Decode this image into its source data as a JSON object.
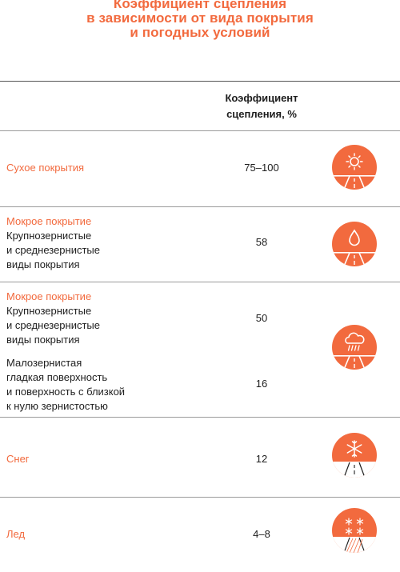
{
  "title": {
    "line1": "Коэффициент сцепления",
    "line2": "в зависимости от вида покрытия",
    "line3": "и погодных условий"
  },
  "header": {
    "line1": "Коэффициент",
    "line2": "сцепления, %"
  },
  "rows": [
    {
      "condition": "Сухое покрытия",
      "value": "75–100",
      "icon": "sun-road-icon"
    },
    {
      "condition": "Мокрое покрытие",
      "surface": [
        "Крупнозернистые",
        "и среднезернистые",
        "виды покрытия"
      ],
      "value": "58",
      "icon": "raindrop-road-icon"
    },
    {
      "condition": "Мокрое покрытие",
      "surface": [
        "Крупнозернистые",
        "и среднезернистые",
        "виды покрытия"
      ],
      "value": "50",
      "surface2": [
        "Малозернистая",
        "гладкая поверхность",
        "и поверхность с близкой",
        "к нулю зернистостью"
      ],
      "value2": "16",
      "icon": "rain-cloud-road-icon"
    },
    {
      "condition": "Снег",
      "value": "12",
      "icon": "snowflake-road-icon"
    },
    {
      "condition": "Лед",
      "value": "4–8",
      "icon": "ice-road-icon"
    }
  ],
  "colors": {
    "accent": "#f26a3e",
    "text": "#1e1e1e",
    "rule": "#9a9a9a"
  }
}
